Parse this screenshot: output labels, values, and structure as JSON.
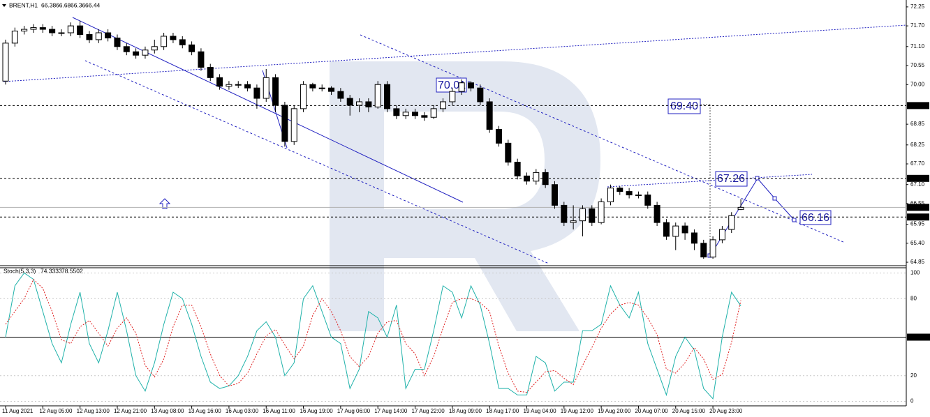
{
  "chart_data": [
    {
      "type": "candlestick",
      "title": "BRENT,H1",
      "categories": [
        "11 Aug 2021",
        null,
        null,
        null,
        "12 Aug 05:00",
        null,
        null,
        null,
        "12 Aug 13:00",
        null,
        null,
        null,
        "12 Aug 21:00",
        null,
        null,
        null,
        "13 Aug 08:00",
        null,
        null,
        null,
        "13 Aug 16:00",
        null,
        null,
        null,
        "16 Aug 03:00",
        null,
        null,
        null,
        "16 Aug 11:00",
        null,
        null,
        null,
        "16 Aug 19:00",
        null,
        null,
        null,
        "17 Aug 06:00",
        null,
        null,
        null,
        "17 Aug 14:00",
        null,
        null,
        null,
        "17 Aug 22:00",
        null,
        null,
        null,
        "18 Aug 09:00",
        null,
        null,
        null,
        "18 Aug 17:00",
        null,
        null,
        null,
        "19 Aug 04:00",
        null,
        null,
        null,
        "19 Aug 12:00",
        null,
        null,
        null,
        "19 Aug 20:00",
        null,
        null,
        null,
        "20 Aug 07:00",
        null,
        null,
        null,
        "20 Aug 15:00",
        null,
        null,
        null,
        "20 Aug 23:00",
        null,
        null,
        null
      ],
      "open": [
        70.1,
        71.2,
        71.55,
        71.6,
        71.65,
        71.6,
        71.5,
        71.5,
        71.7,
        71.45,
        71.3,
        71.5,
        71.35,
        71.1,
        70.95,
        70.85,
        71.0,
        71.1,
        71.4,
        71.3,
        71.15,
        70.95,
        70.5,
        70.2,
        69.95,
        70.0,
        70.0,
        69.9,
        69.6,
        70.2,
        69.4,
        68.35,
        69.3,
        70.0,
        69.9,
        69.9,
        69.8,
        69.6,
        69.4,
        69.5,
        69.35,
        70.0,
        69.3,
        69.1,
        69.2,
        69.1,
        69.05,
        69.3,
        69.5,
        69.8,
        70.05,
        69.9,
        69.5,
        68.7,
        68.3,
        67.75,
        67.35,
        67.2,
        67.45,
        67.1,
        66.5,
        66.0,
        66.05,
        66.4,
        66.0,
        66.6,
        67.0,
        66.9,
        66.8,
        66.8,
        66.5,
        66.0,
        65.6,
        65.9,
        65.7,
        65.4,
        65.0,
        65.5,
        65.8,
        66.38
      ],
      "high": [
        71.3,
        71.65,
        71.7,
        71.75,
        71.75,
        71.7,
        71.6,
        71.8,
        71.85,
        71.55,
        71.6,
        71.6,
        71.45,
        71.2,
        71.05,
        71.1,
        71.3,
        71.5,
        71.5,
        71.4,
        71.25,
        71.05,
        70.6,
        70.3,
        70.1,
        70.1,
        70.1,
        70.0,
        70.45,
        70.3,
        69.5,
        69.4,
        70.1,
        70.05,
        70.0,
        69.95,
        69.9,
        69.7,
        69.6,
        69.6,
        70.1,
        70.1,
        69.4,
        69.3,
        69.3,
        69.2,
        69.4,
        69.6,
        69.9,
        70.15,
        70.1,
        70.0,
        69.6,
        68.8,
        68.4,
        67.85,
        67.45,
        67.55,
        67.55,
        67.2,
        66.6,
        66.5,
        66.5,
        66.5,
        66.7,
        67.1,
        67.05,
        67.0,
        66.9,
        66.9,
        66.6,
        66.1,
        66.0,
        66.0,
        65.8,
        65.5,
        65.6,
        65.9,
        66.3,
        66.68
      ],
      "low": [
        70.0,
        71.1,
        71.45,
        71.5,
        71.5,
        71.4,
        71.4,
        71.4,
        71.35,
        71.2,
        71.2,
        71.25,
        71.0,
        70.85,
        70.75,
        70.75,
        70.9,
        71.0,
        71.2,
        71.05,
        70.85,
        70.4,
        70.1,
        69.85,
        69.85,
        69.9,
        69.8,
        69.3,
        69.5,
        69.2,
        68.2,
        68.25,
        69.2,
        69.8,
        69.8,
        69.7,
        69.5,
        69.1,
        69.2,
        69.2,
        69.3,
        69.2,
        69.0,
        69.0,
        69.0,
        68.95,
        69.0,
        69.2,
        69.4,
        69.7,
        69.8,
        69.4,
        68.6,
        68.2,
        67.65,
        67.25,
        67.1,
        67.1,
        67.0,
        66.4,
        65.9,
        65.8,
        65.6,
        65.9,
        65.95,
        66.5,
        66.8,
        66.7,
        66.7,
        66.4,
        65.9,
        65.5,
        65.2,
        65.5,
        65.2,
        64.95,
        64.95,
        65.4,
        65.7,
        66.36
      ],
      "close": [
        71.2,
        71.55,
        71.6,
        71.65,
        71.6,
        71.5,
        71.5,
        71.7,
        71.45,
        71.3,
        71.5,
        71.35,
        71.1,
        70.95,
        70.85,
        71.0,
        71.1,
        71.4,
        71.3,
        71.15,
        70.95,
        70.5,
        70.2,
        69.95,
        70.0,
        70.0,
        69.9,
        69.6,
        70.2,
        69.4,
        68.35,
        69.3,
        70.0,
        69.9,
        69.9,
        69.8,
        69.6,
        69.4,
        69.5,
        69.35,
        70.0,
        69.3,
        69.1,
        69.2,
        69.1,
        69.05,
        69.3,
        69.5,
        69.8,
        70.05,
        69.9,
        69.5,
        68.7,
        68.3,
        67.75,
        67.35,
        67.2,
        67.45,
        67.1,
        66.5,
        66.0,
        66.05,
        66.4,
        66.0,
        66.6,
        67.0,
        66.9,
        66.8,
        66.8,
        66.5,
        66.0,
        65.6,
        65.9,
        65.7,
        65.4,
        65.0,
        65.5,
        65.8,
        66.2,
        66.44
      ],
      "ylim": [
        64.77,
        72.45
      ],
      "yticks": [
        72.25,
        {
          "value": 71.7,
          "label": "71.70"
        },
        {
          "value": 71.1,
          "label": "71.10"
        },
        70.55,
        {
          "value": 70,
          "label": "70.00"
        },
        68.85,
        68.25,
        {
          "value": 67.7,
          "label": "67.70"
        },
        {
          "value": 67.1,
          "label": "67.10"
        },
        66.55,
        65.95,
        {
          "value": 65.4,
          "label": "65.40"
        },
        64.85
      ],
      "levels": [
        69.39,
        67.28,
        66.16
      ],
      "annotations": [
        "70.01",
        "69.40",
        "67.26",
        "66.16"
      ],
      "bull_color": "#ffffff",
      "bear_color": "#000000"
    },
    {
      "type": "line",
      "title": "Stoch(5,3,3)",
      "series": [
        {
          "color": "#20b2aa",
          "style": "solid",
          "values": [
            50,
            90,
            100,
            95,
            70,
            45,
            30,
            60,
            85,
            45,
            30,
            55,
            85,
            55,
            20,
            8,
            30,
            60,
            85,
            80,
            60,
            35,
            15,
            10,
            12,
            20,
            35,
            55,
            62,
            50,
            20,
            30,
            80,
            90,
            70,
            50,
            45,
            10,
            25,
            70,
            65,
            50,
            75,
            10,
            25,
            25,
            55,
            90,
            85,
            65,
            90,
            75,
            45,
            10,
            10,
            5,
            5,
            35,
            30,
            8,
            15,
            15,
            55,
            55,
            60,
            90,
            75,
            65,
            85,
            45,
            25,
            5,
            35,
            50,
            40,
            10,
            2,
            50,
            85,
            74.3333
          ]
        },
        {
          "color": "#e02020",
          "style": "dotted",
          "values": [
            60,
            70,
            80,
            95,
            88,
            70,
            48,
            45,
            58,
            63,
            53,
            43,
            57,
            65,
            53,
            28,
            19,
            33,
            58,
            75,
            75,
            58,
            37,
            20,
            12,
            14,
            22,
            37,
            51,
            56,
            44,
            33,
            43,
            67,
            80,
            70,
            55,
            35,
            27,
            35,
            53,
            62,
            63,
            45,
            37,
            20,
            35,
            57,
            77,
            80,
            80,
            77,
            70,
            43,
            22,
            8,
            7,
            15,
            23,
            24,
            18,
            13,
            28,
            42,
            57,
            68,
            75,
            77,
            75,
            65,
            52,
            25,
            22,
            30,
            42,
            33,
            17,
            21,
            46,
            78.5502
          ]
        }
      ],
      "ylim": [
        -3.5,
        103.5
      ],
      "yticks": [
        100,
        80,
        20,
        0
      ],
      "levels": [
        {
          "value": 50,
          "label": "50.0000"
        }
      ],
      "grid": true
    }
  ]
}
